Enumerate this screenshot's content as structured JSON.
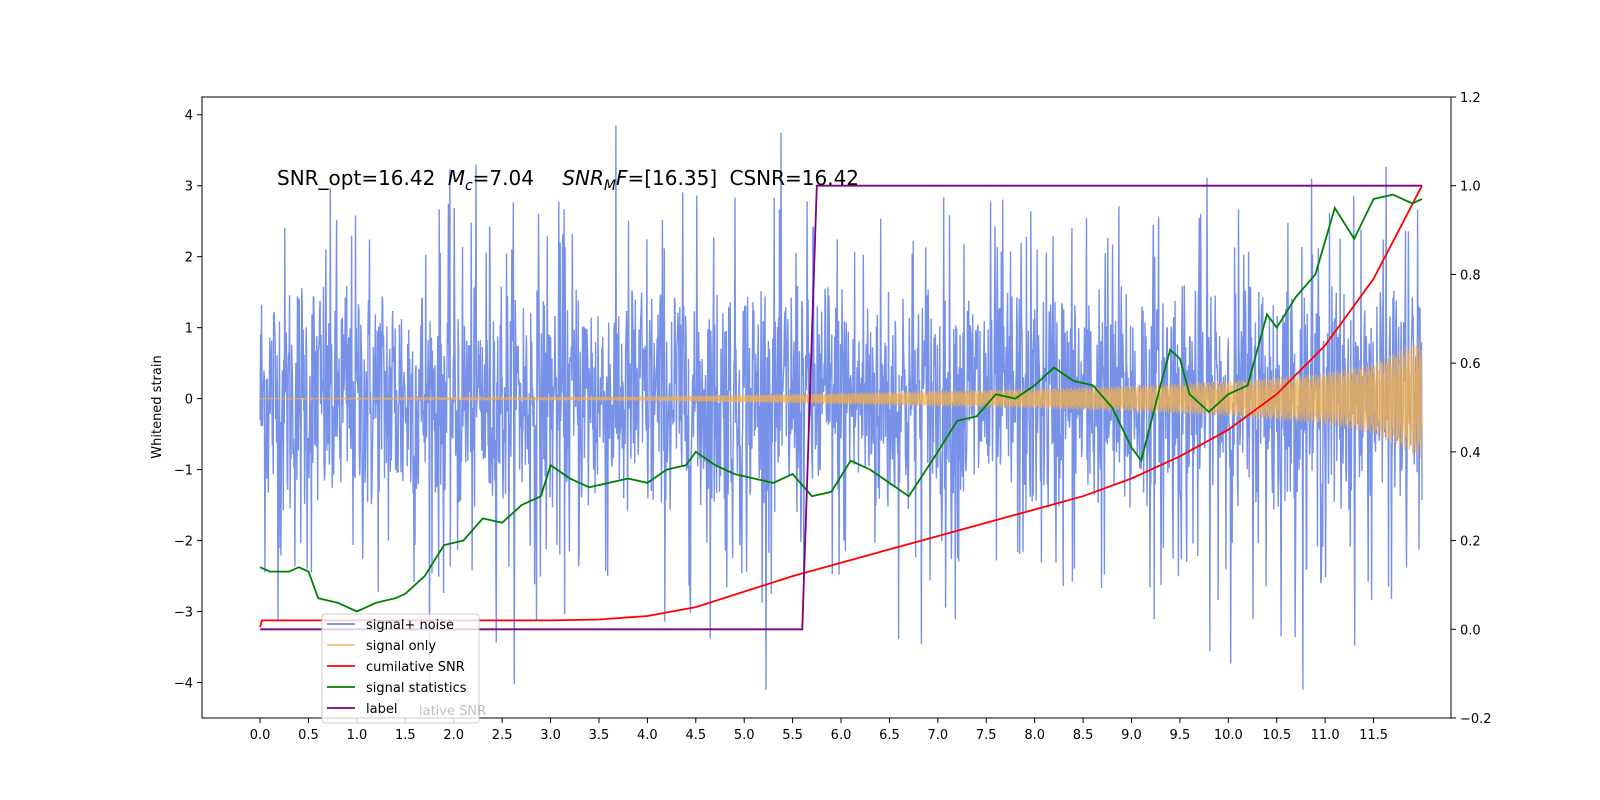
{
  "chart_data": {
    "type": "line",
    "ylabel": "Whitened strain",
    "annotation": {
      "snr_opt": "SNR_opt=16.42",
      "mc_sym": "M",
      "mc_sub": "c",
      "mc_val": "=7.04",
      "snrmf_sym": "SNR",
      "snrmf_sub": "M",
      "snrmf_F": "F",
      "snrmf_val": "=[16.35]",
      "csnr": "CSNR=16.42"
    },
    "xlim": [
      -0.6,
      12.3
    ],
    "ylim_left": [
      -4.5,
      4.25
    ],
    "ylim_right": [
      -0.2,
      1.2
    ],
    "x_ticks": [
      "0.0",
      "0.5",
      "1.0",
      "1.5",
      "2.0",
      "2.5",
      "3.0",
      "3.5",
      "4.0",
      "4.5",
      "5.0",
      "5.5",
      "6.0",
      "6.5",
      "7.0",
      "7.5",
      "8.0",
      "8.5",
      "9.0",
      "9.5",
      "10.0",
      "10.5",
      "11.0",
      "11.5"
    ],
    "y_ticks_left": [
      "4",
      "3",
      "2",
      "1",
      "0",
      "−1",
      "−2",
      "−3",
      "−4"
    ],
    "y_ticks_right": [
      "1.2",
      "1.0",
      "0.8",
      "0.6",
      "0.4",
      "0.2",
      "0.0",
      "−0.2"
    ],
    "series": [
      {
        "name": "signal+ noise",
        "axis": "left",
        "color": "#6b88e6",
        "summary": {
          "x_range": [
            0.0,
            12.0
          ],
          "typical_range": [
            -1.8,
            1.9
          ],
          "extremes": [
            -4.1,
            3.85
          ]
        }
      },
      {
        "name": "signal only",
        "axis": "left",
        "color": "#f5b04a",
        "envelope": {
          "x": [
            0.0,
            2.0,
            4.0,
            6.0,
            8.0,
            9.0,
            10.0,
            11.0,
            11.5,
            12.0
          ],
          "amp": [
            0.0,
            0.01,
            0.03,
            0.08,
            0.14,
            0.18,
            0.25,
            0.36,
            0.5,
            0.85
          ]
        }
      },
      {
        "name": "cumilative SNR",
        "axis": "right",
        "color": "#ff0000",
        "x": [
          0.0,
          0.02,
          3.0,
          3.5,
          4.0,
          4.5,
          5.0,
          5.5,
          6.0,
          6.5,
          7.0,
          7.5,
          8.0,
          8.5,
          9.0,
          9.5,
          10.0,
          10.5,
          11.0,
          11.5,
          12.0
        ],
        "values": [
          0.005,
          0.02,
          0.02,
          0.022,
          0.03,
          0.05,
          0.085,
          0.12,
          0.15,
          0.18,
          0.21,
          0.24,
          0.27,
          0.3,
          0.34,
          0.39,
          0.45,
          0.53,
          0.64,
          0.79,
          1.0
        ]
      },
      {
        "name": "signal statistics",
        "axis": "right",
        "color": "#008000",
        "x": [
          0.0,
          0.1,
          0.3,
          0.4,
          0.5,
          0.6,
          0.8,
          1.0,
          1.2,
          1.4,
          1.5,
          1.7,
          1.9,
          2.1,
          2.3,
          2.5,
          2.7,
          2.9,
          3.0,
          3.2,
          3.4,
          3.6,
          3.8,
          4.0,
          4.2,
          4.4,
          4.5,
          4.7,
          4.9,
          5.1,
          5.3,
          5.5,
          5.7,
          5.9,
          6.1,
          6.3,
          6.5,
          6.7,
          7.0,
          7.2,
          7.4,
          7.6,
          7.8,
          8.0,
          8.2,
          8.4,
          8.6,
          8.8,
          9.0,
          9.1,
          9.3,
          9.4,
          9.5,
          9.6,
          9.8,
          10.0,
          10.2,
          10.4,
          10.5,
          10.7,
          10.9,
          11.1,
          11.3,
          11.5,
          11.7,
          11.9,
          12.0
        ],
        "values": [
          0.14,
          0.13,
          0.13,
          0.14,
          0.13,
          0.07,
          0.06,
          0.04,
          0.06,
          0.07,
          0.08,
          0.12,
          0.19,
          0.2,
          0.25,
          0.24,
          0.28,
          0.3,
          0.37,
          0.34,
          0.32,
          0.33,
          0.34,
          0.33,
          0.36,
          0.37,
          0.4,
          0.37,
          0.35,
          0.34,
          0.33,
          0.35,
          0.3,
          0.31,
          0.38,
          0.36,
          0.33,
          0.3,
          0.4,
          0.47,
          0.48,
          0.53,
          0.52,
          0.55,
          0.59,
          0.56,
          0.55,
          0.5,
          0.41,
          0.38,
          0.55,
          0.63,
          0.61,
          0.53,
          0.49,
          0.53,
          0.55,
          0.71,
          0.68,
          0.75,
          0.8,
          0.95,
          0.88,
          0.97,
          0.98,
          0.96,
          0.97
        ]
      },
      {
        "name": "label",
        "axis": "right",
        "color": "#800080",
        "x": [
          0.0,
          5.6,
          5.75,
          12.0
        ],
        "values": [
          0.0,
          0.0,
          1.0,
          1.0
        ]
      }
    ],
    "legend": {
      "position": "lower-left",
      "items": [
        "signal+ noise",
        "signal only",
        "cumilative SNR",
        "signal statistics",
        "label"
      ],
      "ghost_text": "lative SNR"
    }
  }
}
